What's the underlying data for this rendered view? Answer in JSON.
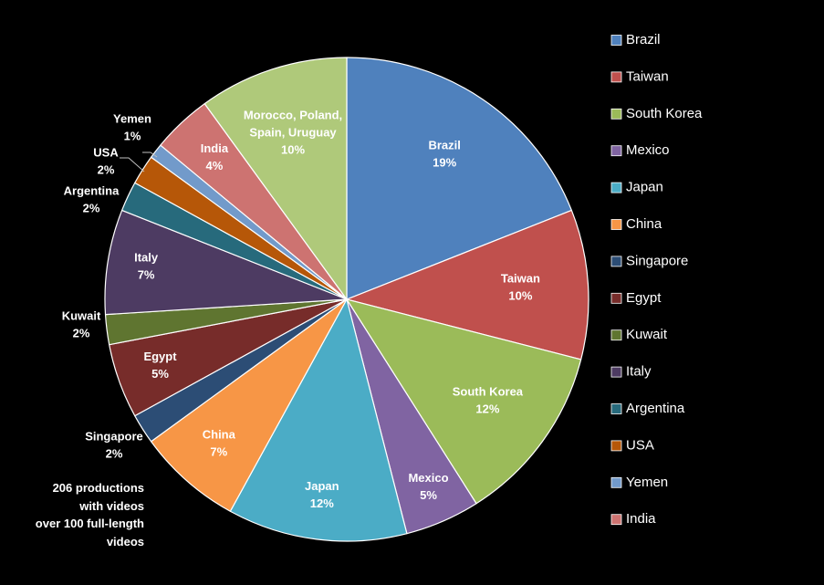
{
  "chart_data": {
    "type": "pie",
    "title": "",
    "start_angle_deg": 0,
    "direction": "clockwise",
    "legend_placement": "right",
    "slices": [
      {
        "label": "Brazil",
        "value": 19,
        "value_label": "19%",
        "color": "#4F81BD",
        "label_lines": [
          "Brazil"
        ]
      },
      {
        "label": "Taiwan",
        "value": 10,
        "value_label": "10%",
        "color": "#C0504D",
        "label_lines": [
          "Taiwan"
        ]
      },
      {
        "label": "South Korea",
        "value": 12,
        "value_label": "12%",
        "color": "#9BBB59",
        "label_lines": [
          "South  Korea"
        ]
      },
      {
        "label": "Mexico",
        "value": 5,
        "value_label": "5%",
        "color": "#8064A2",
        "label_lines": [
          "Mexico"
        ]
      },
      {
        "label": "Japan",
        "value": 12,
        "value_label": "12%",
        "color": "#4BACC6",
        "label_lines": [
          "Japan"
        ]
      },
      {
        "label": "China",
        "value": 7,
        "value_label": "7%",
        "color": "#F79646",
        "label_lines": [
          "China"
        ]
      },
      {
        "label": "Singapore",
        "value": 2,
        "value_label": "2%",
        "color": "#2C4D75",
        "label_lines": [
          "Singapore"
        ]
      },
      {
        "label": "Egypt",
        "value": 5,
        "value_label": "5%",
        "color": "#772C2A",
        "label_lines": [
          "Egypt"
        ]
      },
      {
        "label": "Kuwait",
        "value": 2,
        "value_label": "2%",
        "color": "#5F7530",
        "label_lines": [
          "Kuwait"
        ]
      },
      {
        "label": "Italy",
        "value": 7,
        "value_label": "7%",
        "color": "#4D3B62",
        "label_lines": [
          "Italy"
        ]
      },
      {
        "label": "Argentina",
        "value": 2,
        "value_label": "2%",
        "color": "#276A7C",
        "label_lines": [
          "Argentina"
        ]
      },
      {
        "label": "USA",
        "value": 2,
        "value_label": "2%",
        "color": "#B65708",
        "label_lines": [
          "USA"
        ]
      },
      {
        "label": "Yemen",
        "value": 1,
        "value_label": "1%",
        "color": "#729ACA",
        "label_lines": [
          "Yemen"
        ]
      },
      {
        "label": "India",
        "value": 4,
        "value_label": "4%",
        "color": "#CD7371",
        "label_lines": [
          "India"
        ]
      },
      {
        "label": "Morocco, Poland, Spain, Uruguay",
        "value": 10,
        "value_label": "10%",
        "color": "#AFC97A",
        "label_lines": [
          "Morocco, Poland,",
          "Spain, Uruguay"
        ]
      }
    ],
    "legend": [
      "Brazil",
      "Taiwan",
      "South Korea",
      "Mexico",
      "Japan",
      "China",
      "Singapore",
      "Egypt",
      "Kuwait",
      "Italy",
      "Argentina",
      "USA",
      "Yemen",
      "India"
    ]
  },
  "annotation": {
    "lines": [
      "206 productions",
      "with videos",
      "over 100 full-length",
      "videos"
    ]
  }
}
